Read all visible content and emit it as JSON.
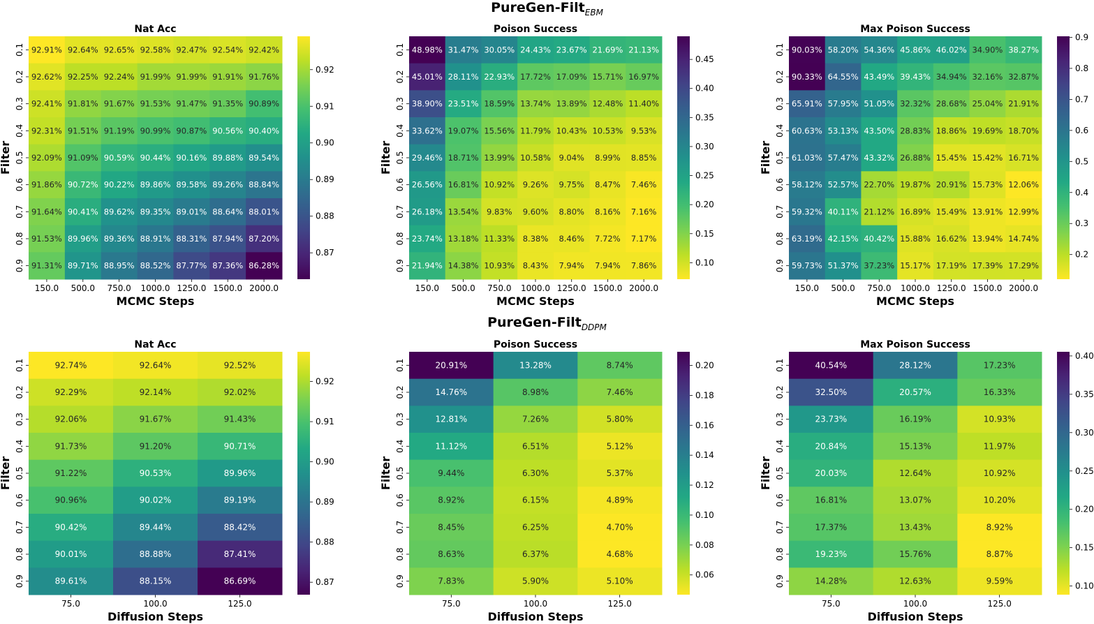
{
  "titles": {
    "top_main": "PureGen-Filt",
    "top_sub": "EBM",
    "bottom_main": "PureGen-Filt",
    "bottom_sub": "DDPM"
  },
  "chart_data": [
    {
      "type": "heatmap",
      "title": "Nat Acc",
      "xlabel": "MCMC Steps",
      "ylabel": "Filter",
      "x_categories": [
        "150.0",
        "500.0",
        "750.0",
        "1000.0",
        "1250.0",
        "1500.0",
        "2000.0"
      ],
      "y_categories": [
        "0.1",
        "0.2",
        "0.3",
        "0.4",
        "0.5",
        "0.6",
        "0.7",
        "0.8",
        "0.9"
      ],
      "colormap": "viridis",
      "reversed": false,
      "vmin": 0.8628,
      "vmax": 0.9291,
      "colorbar_ticks": [
        "0.87",
        "0.88",
        "0.89",
        "0.90",
        "0.91",
        "0.92"
      ],
      "values": [
        [
          92.91,
          92.64,
          92.65,
          92.58,
          92.47,
          92.54,
          92.42
        ],
        [
          92.62,
          92.25,
          92.24,
          91.99,
          91.99,
          91.91,
          91.76
        ],
        [
          92.41,
          91.81,
          91.67,
          91.53,
          91.47,
          91.35,
          90.89
        ],
        [
          92.31,
          91.51,
          91.19,
          90.99,
          90.87,
          90.56,
          90.4
        ],
        [
          92.09,
          91.09,
          90.59,
          90.44,
          90.16,
          89.88,
          89.54
        ],
        [
          91.86,
          90.72,
          90.22,
          89.86,
          89.58,
          89.26,
          88.84
        ],
        [
          91.64,
          90.41,
          89.62,
          89.35,
          89.01,
          88.64,
          88.01
        ],
        [
          91.53,
          89.96,
          89.36,
          88.91,
          88.31,
          87.94,
          87.2
        ],
        [
          91.31,
          89.71,
          88.95,
          88.52,
          87.77,
          87.36,
          86.28
        ]
      ]
    },
    {
      "type": "heatmap",
      "title": "Poison Success",
      "xlabel": "MCMC Steps",
      "ylabel": "Filter",
      "x_categories": [
        "150.0",
        "500.0",
        "750.0",
        "1000.0",
        "1250.0",
        "1500.0",
        "2000.0"
      ],
      "y_categories": [
        "0.1",
        "0.2",
        "0.3",
        "0.4",
        "0.5",
        "0.6",
        "0.7",
        "0.8",
        "0.9"
      ],
      "colormap": "viridis",
      "reversed": true,
      "vmin": 0.0716,
      "vmax": 0.4898,
      "colorbar_ticks": [
        "0.10",
        "0.15",
        "0.20",
        "0.25",
        "0.30",
        "0.35",
        "0.40",
        "0.45"
      ],
      "values": [
        [
          48.98,
          31.47,
          30.05,
          24.43,
          23.67,
          21.69,
          21.13
        ],
        [
          45.01,
          28.11,
          22.93,
          17.72,
          17.09,
          15.71,
          16.97
        ],
        [
          38.9,
          23.51,
          18.59,
          13.74,
          13.89,
          12.48,
          11.4
        ],
        [
          33.62,
          19.07,
          15.56,
          11.79,
          10.43,
          10.53,
          9.53
        ],
        [
          29.46,
          18.71,
          13.99,
          10.58,
          9.04,
          8.99,
          8.85
        ],
        [
          26.56,
          16.81,
          10.92,
          9.26,
          9.75,
          8.47,
          7.46
        ],
        [
          26.18,
          13.54,
          9.83,
          9.6,
          8.8,
          8.16,
          7.16
        ],
        [
          23.74,
          13.18,
          11.33,
          8.38,
          8.46,
          7.72,
          7.17
        ],
        [
          21.94,
          14.38,
          10.93,
          8.43,
          7.94,
          7.94,
          7.86
        ]
      ]
    },
    {
      "type": "heatmap",
      "title": "Max Poison Success",
      "xlabel": "MCMC Steps",
      "ylabel": "Filter",
      "x_categories": [
        "150.0",
        "500.0",
        "750.0",
        "1000.0",
        "1250.0",
        "1500.0",
        "2000.0"
      ],
      "y_categories": [
        "0.1",
        "0.2",
        "0.3",
        "0.4",
        "0.5",
        "0.6",
        "0.7",
        "0.8",
        "0.9"
      ],
      "colormap": "viridis",
      "reversed": true,
      "vmin": 0.1206,
      "vmax": 0.9033,
      "colorbar_ticks": [
        "0.2",
        "0.3",
        "0.4",
        "0.5",
        "0.6",
        "0.7",
        "0.8",
        "0.9"
      ],
      "values": [
        [
          90.03,
          58.2,
          54.36,
          45.86,
          46.02,
          34.9,
          38.27
        ],
        [
          90.33,
          64.55,
          43.49,
          39.43,
          34.94,
          32.16,
          32.87
        ],
        [
          65.91,
          57.95,
          51.05,
          32.32,
          28.68,
          25.04,
          21.91
        ],
        [
          60.63,
          53.13,
          43.5,
          28.83,
          18.86,
          19.69,
          18.7
        ],
        [
          61.03,
          57.47,
          43.32,
          26.88,
          15.45,
          15.42,
          16.71
        ],
        [
          58.12,
          52.57,
          22.7,
          19.87,
          20.91,
          15.73,
          12.06
        ],
        [
          59.32,
          40.11,
          21.12,
          16.89,
          15.49,
          13.91,
          12.99
        ],
        [
          63.19,
          42.15,
          40.42,
          15.88,
          16.62,
          13.94,
          14.74
        ],
        [
          59.73,
          51.37,
          37.23,
          15.17,
          17.19,
          17.39,
          17.29
        ]
      ]
    },
    {
      "type": "heatmap",
      "title": "Nat Acc",
      "xlabel": "Diffusion Steps",
      "ylabel": "Filter",
      "x_categories": [
        "75.0",
        "100.0",
        "125.0"
      ],
      "y_categories": [
        "0.1",
        "0.2",
        "0.3",
        "0.4",
        "0.5",
        "0.6",
        "0.7",
        "0.8",
        "0.9"
      ],
      "colormap": "viridis",
      "reversed": false,
      "vmin": 0.8669,
      "vmax": 0.9274,
      "colorbar_ticks": [
        "0.87",
        "0.88",
        "0.89",
        "0.90",
        "0.91",
        "0.92"
      ],
      "values": [
        [
          92.74,
          92.64,
          92.52
        ],
        [
          92.29,
          92.14,
          92.02
        ],
        [
          92.06,
          91.67,
          91.43
        ],
        [
          91.73,
          91.2,
          90.71
        ],
        [
          91.22,
          90.53,
          89.96
        ],
        [
          90.96,
          90.02,
          89.19
        ],
        [
          90.42,
          89.44,
          88.42
        ],
        [
          90.01,
          88.88,
          87.41
        ],
        [
          89.61,
          88.15,
          86.69
        ]
      ]
    },
    {
      "type": "heatmap",
      "title": "Poison Success",
      "xlabel": "Diffusion Steps",
      "ylabel": "Filter",
      "x_categories": [
        "75.0",
        "100.0",
        "125.0"
      ],
      "y_categories": [
        "0.1",
        "0.2",
        "0.3",
        "0.4",
        "0.5",
        "0.6",
        "0.7",
        "0.8",
        "0.9"
      ],
      "colormap": "viridis",
      "reversed": true,
      "vmin": 0.0468,
      "vmax": 0.2091,
      "colorbar_ticks": [
        "0.06",
        "0.08",
        "0.10",
        "0.12",
        "0.14",
        "0.16",
        "0.18",
        "0.20"
      ],
      "values": [
        [
          20.91,
          13.28,
          8.74
        ],
        [
          14.76,
          8.98,
          7.46
        ],
        [
          12.81,
          7.26,
          5.8
        ],
        [
          11.12,
          6.51,
          5.12
        ],
        [
          9.44,
          6.3,
          5.37
        ],
        [
          8.92,
          6.15,
          4.89
        ],
        [
          8.45,
          6.25,
          4.7
        ],
        [
          8.63,
          6.37,
          4.68
        ],
        [
          7.83,
          5.9,
          5.1
        ]
      ]
    },
    {
      "type": "heatmap",
      "title": "Max Poison Success",
      "xlabel": "Diffusion Steps",
      "ylabel": "Filter",
      "x_categories": [
        "75.0",
        "100.0",
        "125.0"
      ],
      "y_categories": [
        "0.1",
        "0.2",
        "0.3",
        "0.4",
        "0.5",
        "0.6",
        "0.7",
        "0.8",
        "0.9"
      ],
      "colormap": "viridis",
      "reversed": true,
      "vmin": 0.0887,
      "vmax": 0.4054,
      "colorbar_ticks": [
        "0.10",
        "0.15",
        "0.20",
        "0.25",
        "0.30",
        "0.35",
        "0.40"
      ],
      "values": [
        [
          40.54,
          28.12,
          17.23
        ],
        [
          32.5,
          20.57,
          16.33
        ],
        [
          23.73,
          16.19,
          10.93
        ],
        [
          20.84,
          15.13,
          11.97
        ],
        [
          20.03,
          12.64,
          10.92
        ],
        [
          16.81,
          13.07,
          10.2
        ],
        [
          17.37,
          13.43,
          8.92
        ],
        [
          19.23,
          15.76,
          8.87
        ],
        [
          14.28,
          12.63,
          9.59
        ]
      ]
    }
  ]
}
